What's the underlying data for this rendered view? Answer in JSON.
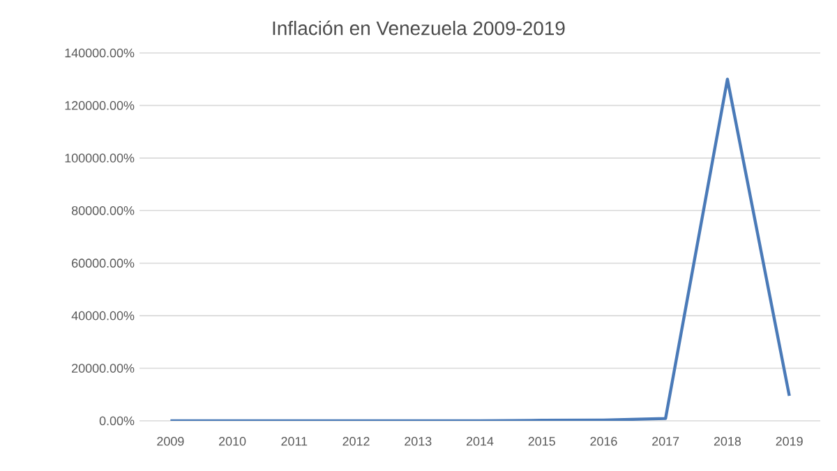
{
  "chart_data": {
    "type": "line",
    "title": "Inflación en Venezuela 2009-2019",
    "categories": [
      "2009",
      "2010",
      "2011",
      "2012",
      "2013",
      "2014",
      "2015",
      "2016",
      "2017",
      "2018",
      "2019"
    ],
    "series": [
      {
        "color": "#4a7ab8",
        "values": [
          0,
          0,
          0,
          0,
          0,
          0,
          200,
          300,
          900,
          130000,
          9500
        ]
      }
    ],
    "ylim": [
      0,
      140000
    ],
    "yticks": [
      {
        "value": 0,
        "label": "0.00%"
      },
      {
        "value": 20000,
        "label": "20000.00%"
      },
      {
        "value": 40000,
        "label": "40000.00%"
      },
      {
        "value": 60000,
        "label": "60000.00%"
      },
      {
        "value": 80000,
        "label": "80000.00%"
      },
      {
        "value": 100000,
        "label": "100000.00%"
      },
      {
        "value": 120000,
        "label": "120000.00%"
      },
      {
        "value": 140000,
        "label": "140000.00%"
      }
    ],
    "grid": "y",
    "marker": "none",
    "line_style": "solid"
  }
}
